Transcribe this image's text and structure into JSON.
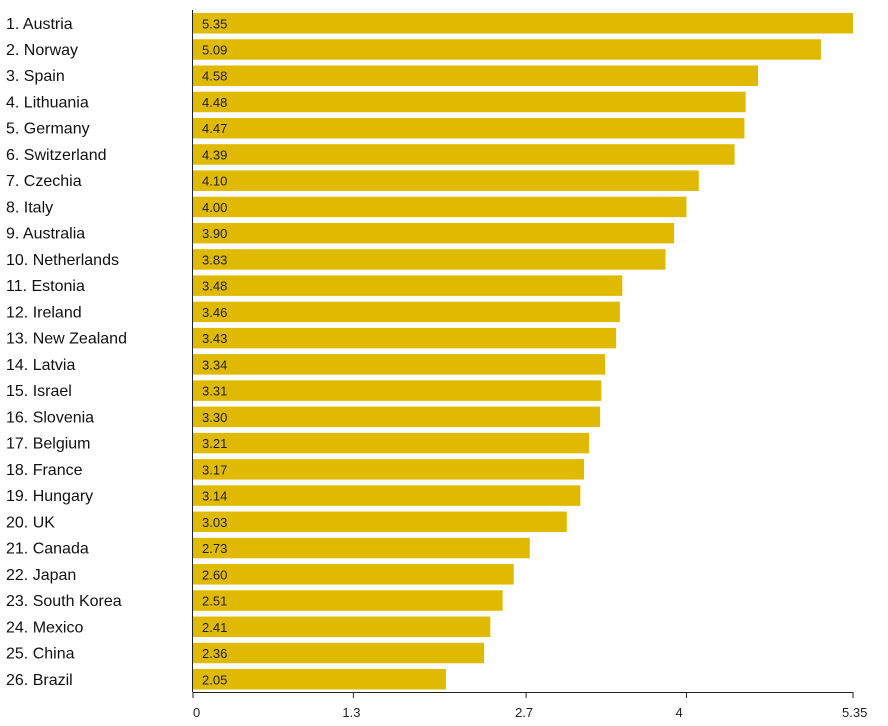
{
  "chart_data": {
    "type": "bar",
    "orientation": "horizontal",
    "categories": [
      "1. Austria",
      "2. Norway",
      "3. Spain",
      "4. Lithuania",
      "5. Germany",
      "6. Switzerland",
      "7. Czechia",
      "8. Italy",
      "9. Australia",
      "10. Netherlands",
      "11. Estonia",
      "12. Ireland",
      "13. New Zealand",
      "14. Latvia",
      "15. Israel",
      "16. Slovenia",
      "17. Belgium",
      "18. France",
      "19. Hungary",
      "20. UK",
      "21. Canada",
      "22. Japan",
      "23. South Korea",
      "24. Mexico",
      "25. China",
      "26. Brazil"
    ],
    "values": [
      5.35,
      5.09,
      4.58,
      4.48,
      4.47,
      4.39,
      4.1,
      4.0,
      3.9,
      3.83,
      3.48,
      3.46,
      3.43,
      3.34,
      3.31,
      3.3,
      3.21,
      3.17,
      3.14,
      3.03,
      2.73,
      2.6,
      2.51,
      2.41,
      2.36,
      2.05
    ],
    "value_labels": [
      "5.35",
      "5.09",
      "4.58",
      "4.48",
      "4.47",
      "4.39",
      "4.10",
      "4.00",
      "3.90",
      "3.83",
      "3.48",
      "3.46",
      "3.43",
      "3.34",
      "3.31",
      "3.30",
      "3.21",
      "3.17",
      "3.14",
      "3.03",
      "2.73",
      "2.60",
      "2.51",
      "2.41",
      "2.36",
      "2.05"
    ],
    "xticks": [
      0,
      1.3,
      2.7,
      4,
      5.35
    ],
    "xtick_labels": [
      "0",
      "1.3",
      "2.7",
      "4",
      "5.35"
    ],
    "xlim": [
      0,
      5.35
    ],
    "title": "",
    "xlabel": "",
    "ylabel": "",
    "grid": false,
    "bar_color": "#e0ba00"
  }
}
